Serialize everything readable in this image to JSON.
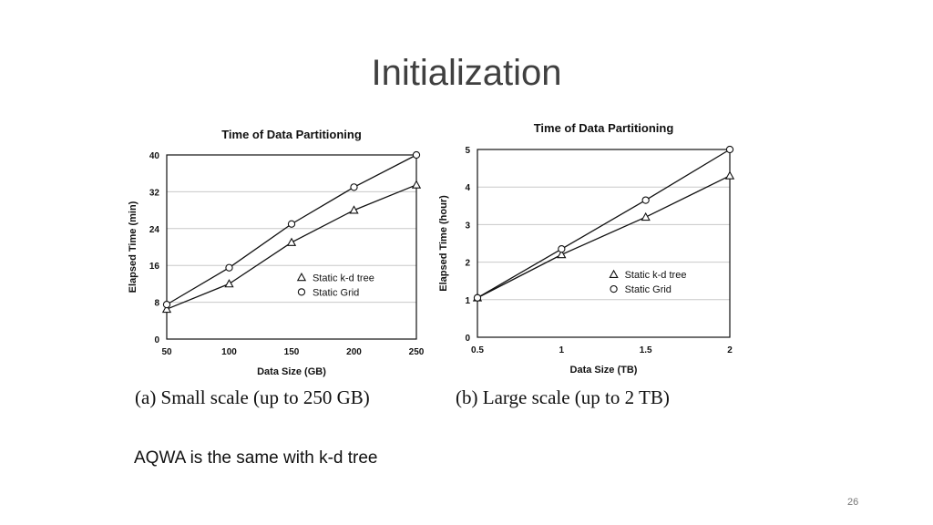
{
  "slide": {
    "title": "Initialization",
    "note": "AQWA is the same with k-d tree",
    "page_number": "26"
  },
  "chart_data": [
    {
      "type": "line",
      "title": "Time of Data Partitioning",
      "xlabel": "Data Size (GB)",
      "ylabel": "Elapsed Time (min)",
      "x": [
        50,
        100,
        150,
        200,
        250
      ],
      "xticks": [
        "50",
        "100",
        "150",
        "200",
        "250"
      ],
      "yticks": [
        "0",
        "8",
        "16",
        "24",
        "32",
        "40"
      ],
      "xlim": [
        50,
        250
      ],
      "ylim": [
        0,
        40
      ],
      "grid": true,
      "legend_position": "center-right",
      "series": [
        {
          "name": "Static k-d tree",
          "marker": "triangle",
          "values": [
            6.5,
            12,
            21,
            28,
            33.5
          ]
        },
        {
          "name": "Static Grid",
          "marker": "circle",
          "values": [
            7.5,
            15.5,
            25,
            33,
            40
          ]
        }
      ],
      "caption": "(a) Small scale (up to 250 GB)"
    },
    {
      "type": "line",
      "title": "Time of Data Partitioning",
      "xlabel": "Data Size (TB)",
      "ylabel": "Elapsed Time (hour)",
      "x": [
        0.5,
        1,
        1.5,
        2
      ],
      "xticks": [
        "0.5",
        "1",
        "1.5",
        "2"
      ],
      "yticks": [
        "0",
        "1",
        "2",
        "3",
        "4",
        "5"
      ],
      "xlim": [
        0.5,
        2
      ],
      "ylim": [
        0,
        5
      ],
      "grid": true,
      "legend_position": "center-right",
      "series": [
        {
          "name": "Static k-d tree",
          "marker": "triangle",
          "values": [
            1.05,
            2.2,
            3.2,
            4.3
          ]
        },
        {
          "name": "Static Grid",
          "marker": "circle",
          "values": [
            1.05,
            2.35,
            3.65,
            5.0
          ]
        }
      ],
      "caption": "(b) Large scale (up to 2 TB)"
    }
  ]
}
